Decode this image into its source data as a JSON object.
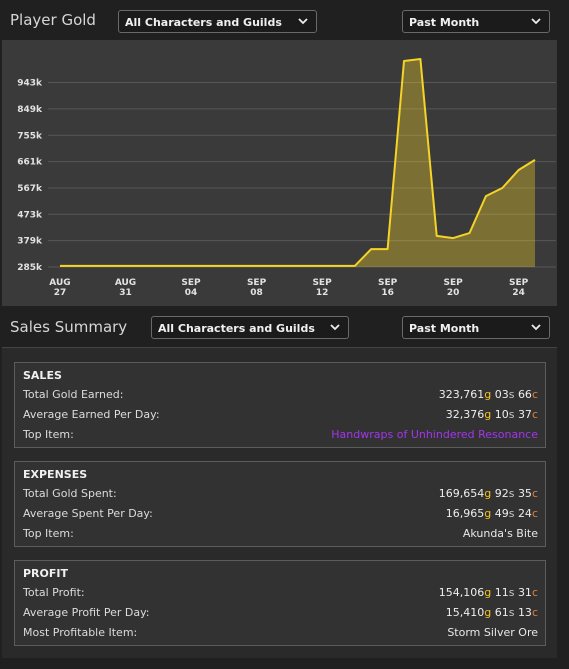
{
  "header": {
    "title": "Player Gold",
    "filter": "All Characters and Guilds",
    "period": "Past Month"
  },
  "chart_data": {
    "type": "line",
    "categories": [
      "AUG 27",
      null,
      null,
      null,
      "AUG 31",
      null,
      null,
      null,
      "SEP 04",
      null,
      null,
      null,
      "SEP 08",
      null,
      null,
      null,
      "SEP 12",
      null,
      null,
      null,
      "SEP 16",
      null,
      null,
      null,
      "SEP 20",
      null,
      null,
      null,
      "SEP 24",
      null
    ],
    "values": [
      289,
      289,
      289,
      289,
      289,
      289,
      289,
      289,
      289,
      289,
      289,
      289,
      289,
      289,
      289,
      289,
      289,
      289,
      289,
      349,
      349,
      1020,
      1027,
      396,
      388,
      406,
      538,
      567,
      631,
      667
    ],
    "color": "#f5d327",
    "ylim": [
      285,
      1077
    ],
    "yticks": [
      {
        "value": 285,
        "label": "285k"
      },
      {
        "value": 379,
        "label": "379k"
      },
      {
        "value": 473,
        "label": "473k"
      },
      {
        "value": 567,
        "label": "567k"
      },
      {
        "value": 661,
        "label": "661k"
      },
      {
        "value": 755,
        "label": "755k"
      },
      {
        "value": 849,
        "label": "849k"
      },
      {
        "value": 943,
        "label": "943k"
      }
    ],
    "grid": true
  },
  "summary": {
    "title": "Sales Summary",
    "filter": "All Characters and Guilds",
    "period": "Past Month",
    "currency_units": [
      "g",
      "s",
      "c"
    ],
    "sections": [
      {
        "title": "SALES",
        "rows": [
          {
            "label": "Total Gold Earned:",
            "amount": [
              "323,761",
              "03",
              "66"
            ]
          },
          {
            "label": "Average Earned Per Day:",
            "amount": [
              "32,376",
              "10",
              "37"
            ]
          },
          {
            "label": "Top Item:",
            "item": "Handwraps of Unhindered Resonance",
            "item_color": "#a335ee"
          }
        ]
      },
      {
        "title": "EXPENSES",
        "rows": [
          {
            "label": "Total Gold Spent:",
            "amount": [
              "169,654",
              "92",
              "35"
            ]
          },
          {
            "label": "Average Spent Per Day:",
            "amount": [
              "16,965",
              "49",
              "24"
            ]
          },
          {
            "label": "Top Item:",
            "item": "Akunda's Bite",
            "item_color": "#e8e8e8"
          }
        ]
      },
      {
        "title": "PROFIT",
        "rows": [
          {
            "label": "Total Profit:",
            "amount": [
              "154,106",
              "11",
              "31"
            ]
          },
          {
            "label": "Average Profit Per Day:",
            "amount": [
              "15,410",
              "61",
              "13"
            ]
          },
          {
            "label": "Most Profitable Item:",
            "item": "Storm Silver Ore",
            "item_color": "#e8e8e8"
          }
        ]
      }
    ]
  }
}
